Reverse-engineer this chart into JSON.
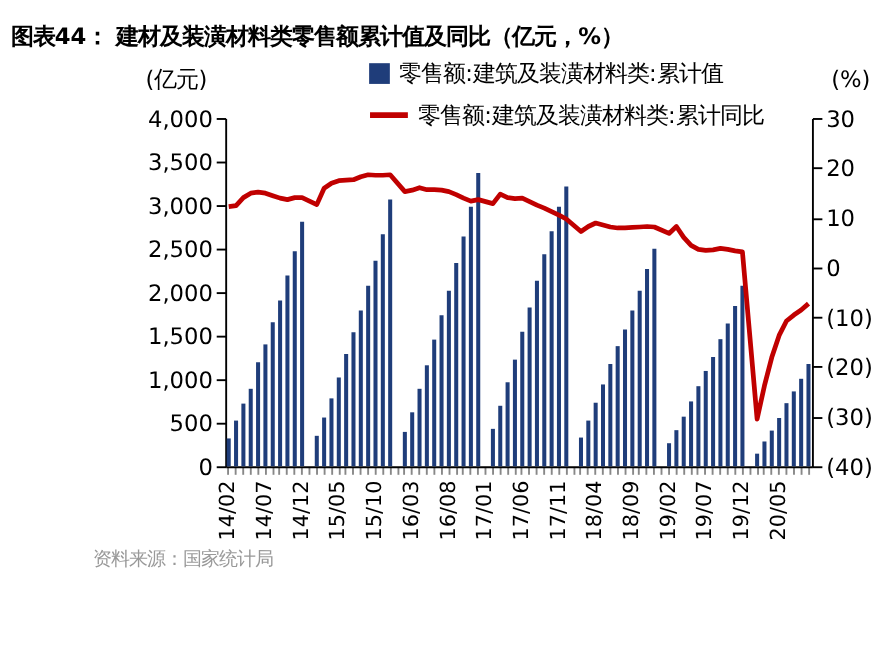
{
  "chart_data": {
    "type": "bar",
    "title": "图表44：  建材及装潢材料类零售额累计值及同比（亿元，%）",
    "ylabel": "(亿元)",
    "y2label": "(%)",
    "annotations": [
      "资料来源：国家统计局"
    ],
    "categories": [
      "14/02",
      null,
      null,
      null,
      null,
      "14/07",
      null,
      null,
      null,
      null,
      "14/12",
      null,
      null,
      null,
      null,
      "15/05",
      null,
      null,
      null,
      null,
      "15/10",
      null,
      null,
      null,
      null,
      "16/03",
      null,
      null,
      null,
      null,
      "16/08",
      null,
      null,
      null,
      null,
      "17/01",
      null,
      null,
      null,
      null,
      "17/06",
      null,
      null,
      null,
      null,
      "17/11",
      null,
      null,
      null,
      null,
      "18/04",
      null,
      null,
      null,
      null,
      "18/09",
      null,
      null,
      null,
      null,
      "19/02",
      null,
      null,
      null,
      null,
      "19/07",
      null,
      null,
      null,
      null,
      "19/12",
      null,
      null,
      null,
      null,
      "20/05",
      null,
      null,
      null,
      null
    ],
    "series": [
      {
        "name": "零售额:建筑及装潢材料类:累计值",
        "color": "#1f3d7a",
        "values": [
          320,
          525,
          720,
          890,
          1195,
          1400,
          1655,
          1905,
          2190,
          2470,
          2810,
          null,
          350,
          560,
          780,
          1020,
          1290,
          1540,
          1790,
          2075,
          2360,
          2665,
          3065,
          null,
          395,
          620,
          890,
          1160,
          1455,
          1735,
          2015,
          2335,
          2640,
          2980,
          3370,
          null,
          430,
          695,
          965,
          1225,
          1545,
          1825,
          2130,
          2435,
          2700,
          2980,
          3215,
          null,
          330,
          525,
          730,
          940,
          1175,
          1380,
          1570,
          1790,
          2015,
          2265,
          2500,
          null,
          265,
          415,
          570,
          745,
          920,
          1095,
          1255,
          1460,
          1640,
          1840,
          2075,
          null,
          145,
          285,
          410,
          555,
          725,
          860,
          1005,
          1175
        ]
      },
      {
        "name": "零售额:建筑及装潢材料类:累计同比",
        "type": "line",
        "axis": "y2",
        "color": "#c00000",
        "values": [
          12.2,
          12.4,
          14.0,
          14.9,
          15.1,
          14.9,
          14.4,
          13.9,
          13.6,
          14.0,
          14.0,
          null,
          12.6,
          15.9,
          16.9,
          17.4,
          17.5,
          17.6,
          18.2,
          18.6,
          18.5,
          18.5,
          18.6,
          null,
          15.2,
          15.5,
          16.0,
          15.6,
          15.6,
          15.5,
          15.2,
          14.6,
          13.9,
          13.3,
          13.6,
          null,
          12.8,
          14.7,
          14.0,
          13.8,
          13.9,
          13.2,
          12.5,
          11.9,
          11.2,
          10.5,
          9.7,
          null,
          7.2,
          8.2,
          8.9,
          8.5,
          8.1,
          7.9,
          7.9,
          8.0,
          8.1,
          8.2,
          8.1,
          null,
          6.8,
          8.2,
          6.0,
          4.4,
          3.6,
          3.4,
          3.5,
          3.8,
          3.6,
          3.3,
          3.1,
          null,
          -30.5,
          -23.8,
          -18.1,
          -13.7,
          -10.8,
          -9.6,
          -8.6,
          -7.3
        ]
      }
    ],
    "ylim": [
      0,
      4000
    ],
    "yticks": [
      0,
      {
        "value": 500,
        "label": "500"
      },
      {
        "value": 1000,
        "label": "1,000"
      },
      {
        "value": 1500,
        "label": "1,500"
      },
      {
        "value": 2000,
        "label": "2,000"
      },
      {
        "value": 2500,
        "label": "2,500"
      },
      {
        "value": 3000,
        "label": "3,000"
      },
      {
        "value": 3500,
        "label": "3,500"
      },
      {
        "value": 4000,
        "label": "4,000"
      }
    ],
    "y2lim": [
      -40,
      30
    ],
    "y2ticks": [
      {
        "value": -40,
        "label": "(40)"
      },
      {
        "value": -30,
        "label": "(30)"
      },
      {
        "value": -20,
        "label": "(20)"
      },
      {
        "value": -10,
        "label": "(10)"
      },
      0,
      10,
      20,
      30
    ],
    "legend": "top",
    "grid": false,
    "line_style": "solid"
  }
}
